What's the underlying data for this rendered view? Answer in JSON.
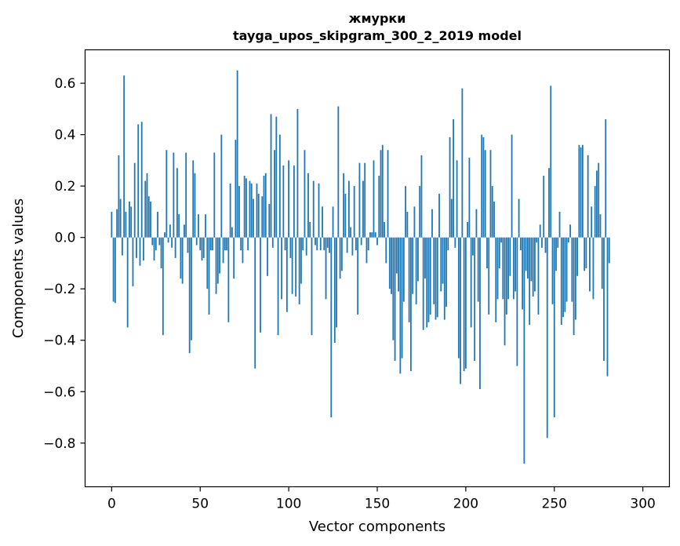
{
  "chart_data": {
    "type": "bar",
    "title": "жмурки",
    "subtitle": "tayga_upos_skipgram_300_2_2019 model",
    "xlabel": "Vector components",
    "ylabel": "Components values",
    "xlim": [
      -15,
      315
    ],
    "ylim": [
      -0.97,
      0.73
    ],
    "x_ticks": [
      0,
      50,
      100,
      150,
      200,
      250,
      300
    ],
    "x_tick_labels": [
      "0",
      "50",
      "100",
      "150",
      "200",
      "250",
      "300"
    ],
    "y_ticks": [
      0.6,
      0.4,
      0.2,
      0.0,
      -0.2,
      -0.4,
      -0.6,
      -0.8
    ],
    "y_tick_labels": [
      "0.6",
      "0.4",
      "0.2",
      "0.0",
      "−0.2",
      "−0.4",
      "−0.6",
      "−0.8"
    ],
    "bar_color": "#1f77b4",
    "grid": false,
    "series": [
      {
        "name": "components",
        "x_start": 0,
        "values": [
          0.1,
          -0.25,
          -0.255,
          0.11,
          0.32,
          0.15,
          -0.07,
          0.63,
          0.1,
          -0.35,
          0.14,
          0.12,
          -0.19,
          0.29,
          -0.08,
          0.44,
          -0.11,
          0.45,
          -0.09,
          0.22,
          0.25,
          0.16,
          0.14,
          -0.03,
          -0.09,
          -0.05,
          0.1,
          -0.03,
          -0.12,
          -0.38,
          0.02,
          0.34,
          -0.02,
          0.05,
          -0.04,
          0.33,
          -0.08,
          0.27,
          0.09,
          -0.16,
          -0.18,
          0.05,
          0.33,
          -0.06,
          -0.45,
          -0.4,
          0.3,
          0.25,
          -0.03,
          0.09,
          -0.05,
          -0.09,
          -0.08,
          0.09,
          -0.2,
          -0.3,
          -0.05,
          -0.05,
          0.33,
          -0.22,
          -0.18,
          -0.14,
          0.4,
          -0.1,
          -0.05,
          -0.05,
          -0.33,
          0.21,
          0.04,
          -0.16,
          0.38,
          0.65,
          0.2,
          -0.05,
          -0.1,
          0.24,
          0.23,
          -0.05,
          0.22,
          0.21,
          0.15,
          -0.51,
          0.21,
          0.17,
          -0.37,
          0.16,
          0.24,
          0.25,
          -0.15,
          0.13,
          0.48,
          -0.04,
          0.34,
          0.47,
          -0.38,
          0.4,
          -0.24,
          0.28,
          -0.05,
          -0.29,
          0.3,
          -0.08,
          -0.22,
          0.28,
          -0.23,
          0.5,
          -0.26,
          -0.18,
          -0.05,
          0.34,
          -0.07,
          0.25,
          0.06,
          -0.38,
          0.22,
          -0.03,
          -0.05,
          0.21,
          -0.05,
          0.12,
          -0.05,
          -0.24,
          -0.04,
          -0.06,
          -0.7,
          0.12,
          -0.41,
          -0.35,
          0.51,
          -0.16,
          -0.13,
          0.25,
          0.17,
          -0.06,
          0.22,
          0.04,
          -0.07,
          0.2,
          -0.05,
          -0.3,
          0.29,
          -0.03,
          0.22,
          0.29,
          -0.1,
          -0.05,
          0.02,
          0.02,
          0.3,
          0.02,
          -0.03,
          0.24,
          0.34,
          0.36,
          0.06,
          -0.1,
          0.34,
          -0.2,
          -0.22,
          -0.4,
          -0.48,
          -0.14,
          -0.21,
          -0.53,
          -0.47,
          -0.25,
          0.2,
          0.1,
          -0.33,
          -0.52,
          -0.22,
          0.12,
          -0.26,
          -0.17,
          0.2,
          0.32,
          -0.36,
          -0.16,
          -0.35,
          -0.33,
          -0.3,
          0.11,
          -0.26,
          -0.32,
          -0.31,
          0.17,
          -0.21,
          -0.18,
          -0.32,
          -0.27,
          -0.05,
          0.39,
          0.15,
          0.46,
          -0.04,
          0.3,
          -0.47,
          -0.57,
          0.58,
          -0.52,
          -0.51,
          0.06,
          0.31,
          -0.35,
          -0.07,
          -0.48,
          0.11,
          -0.25,
          -0.59,
          0.4,
          0.39,
          0.34,
          -0.12,
          -0.3,
          0.34,
          0.2,
          0.14,
          -0.33,
          -0.24,
          -0.12,
          -0.02,
          -0.24,
          -0.42,
          -0.3,
          -0.24,
          -0.15,
          0.4,
          -0.24,
          -0.21,
          -0.5,
          0.15,
          -0.05,
          -0.28,
          -0.88,
          -0.13,
          -0.16,
          -0.34,
          -0.17,
          -0.23,
          -0.21,
          -0.02,
          -0.3,
          0.05,
          -0.04,
          0.24,
          -0.06,
          -0.78,
          0.27,
          0.59,
          -0.26,
          -0.7,
          -0.13,
          -0.04,
          0.1,
          -0.34,
          -0.31,
          -0.29,
          -0.25,
          -0.02,
          0.05,
          -0.25,
          -0.38,
          -0.32,
          -0.15,
          0.36,
          0.35,
          0.36,
          -0.13,
          -0.12,
          0.32,
          -0.21,
          0.12,
          -0.24,
          0.2,
          0.26,
          0.29,
          0.09,
          -0.2,
          -0.48,
          0.46,
          -0.54,
          -0.1
        ]
      }
    ]
  }
}
